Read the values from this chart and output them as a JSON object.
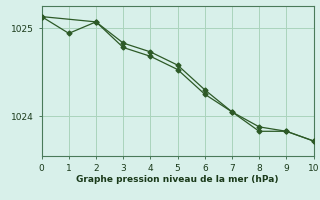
{
  "xlabel": "Graphe pression niveau de la mer (hPa)",
  "xlim": [
    0,
    10
  ],
  "ylim": [
    1023.55,
    1025.25
  ],
  "xticks": [
    0,
    1,
    2,
    3,
    4,
    5,
    6,
    7,
    8,
    9,
    10
  ],
  "yticks": [
    1024,
    1025
  ],
  "line1_x": [
    0,
    1,
    2,
    3,
    4,
    5,
    6,
    7,
    8,
    9,
    10
  ],
  "line1_y": [
    1025.13,
    1024.94,
    1025.07,
    1024.83,
    1024.73,
    1024.58,
    1024.3,
    1024.05,
    1023.88,
    1023.83,
    1023.72
  ],
  "line2_x": [
    0,
    2,
    3,
    4,
    5,
    6,
    7,
    8,
    9,
    10
  ],
  "line2_y": [
    1025.13,
    1025.07,
    1024.78,
    1024.68,
    1024.53,
    1024.25,
    1024.05,
    1023.83,
    1023.83,
    1023.72
  ],
  "line_color": "#2d5a27",
  "bg_color": "#d8f0ea",
  "grid_color": "#aad4bc",
  "axis_color": "#4a7a5a",
  "text_color": "#1a3a1a",
  "marker": "D",
  "marker_size": 2.5,
  "linewidth": 0.9
}
